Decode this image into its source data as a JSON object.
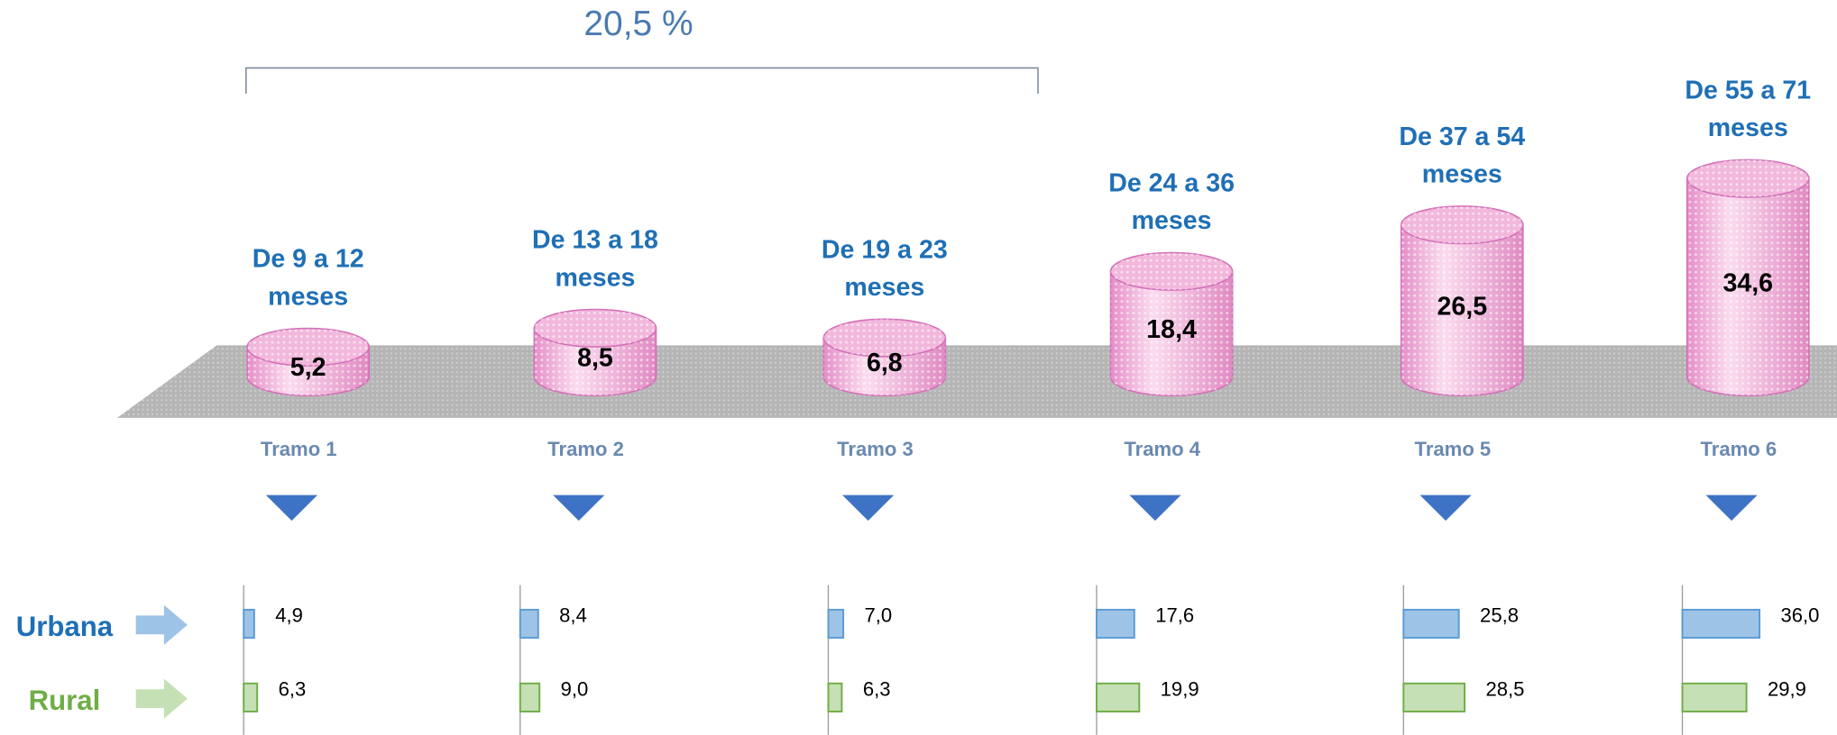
{
  "chart_data": {
    "type": "bar",
    "annotation": "20,5 %",
    "categories": [
      "Tramo 1",
      "Tramo 2",
      "Tramo 3",
      "Tramo 4",
      "Tramo 5",
      "Tramo 6"
    ],
    "ranges": [
      [
        "De 9 a 12",
        "meses"
      ],
      [
        "De 13 a 18",
        "meses"
      ],
      [
        "De 19 a 23",
        "meses"
      ],
      [
        "De 24 a 36",
        "meses"
      ],
      [
        "De 37 a 54",
        "meses"
      ],
      [
        "De 55 a 71",
        "meses"
      ]
    ],
    "values": [
      5.2,
      8.5,
      6.8,
      18.4,
      26.5,
      34.6
    ],
    "value_labels": [
      "5,2",
      "8,5",
      "6,8",
      "18,4",
      "26,5",
      "34,6"
    ],
    "color": "#f2b8dc",
    "series": [
      {
        "name": "Urbana",
        "color": "#9dc3e6",
        "edge_color": "#5b9bd5",
        "label_color": "#1f6fb5",
        "values": [
          4.9,
          8.4,
          7.0,
          17.6,
          25.8,
          36.0
        ],
        "value_labels": [
          "4,9",
          "8,4",
          "7,0",
          "17,6",
          "25,8",
          "36,0"
        ]
      },
      {
        "name": "Rural",
        "color": "#c5e0b4",
        "edge_color": "#70ad47",
        "label_color": "#70ad47",
        "values": [
          6.3,
          9.0,
          6.3,
          19.9,
          28.5,
          29.9
        ],
        "value_labels": [
          "6,3",
          "9,0",
          "6,3",
          "19,9",
          "28,5",
          "29,9"
        ]
      }
    ]
  }
}
